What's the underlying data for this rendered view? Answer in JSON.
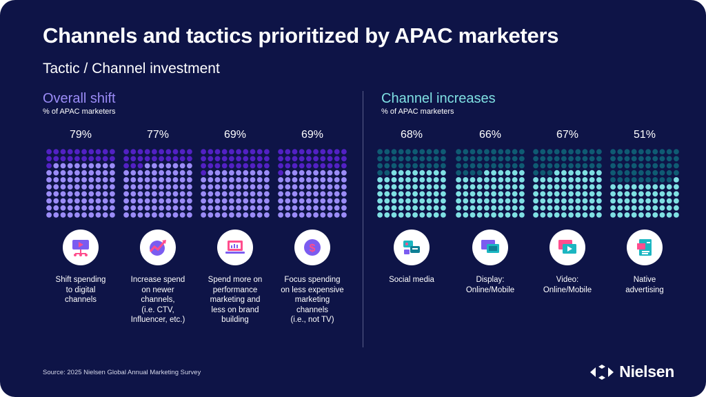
{
  "title": "Channels and tactics prioritized by APAC marketers",
  "subtitle": "Tactic / Channel investment",
  "sections": [
    {
      "title": "Overall shift",
      "subtitle": "% of APAC marketers",
      "color": "#9b8cf7"
    },
    {
      "title": "Channel increases",
      "subtitle": "% of APAC marketers",
      "color": "#7fe0e3"
    }
  ],
  "colors": {
    "background": "#0e1447",
    "purple_fill": "#9b8cf7",
    "purple_empty": "#5221c4",
    "teal_fill": "#7fe0e3",
    "teal_empty": "#0f5b73"
  },
  "chart_data": [
    {
      "type": "waffle",
      "title": "Overall shift",
      "subtitle": "% of APAC marketers",
      "categories": [
        "Shift spending\nto digital\nchannels",
        "Increase spend\non newer\nchannels,\n(i.e. CTV,\nInfluencer, etc.)",
        "Spend more on\nperformance\nmarketing and\nless on brand\nbuilding",
        "Focus spending\non less expensive\nmarketing\nchannels\n(i.e., not TV)"
      ],
      "values": [
        79,
        77,
        69,
        69
      ],
      "labels": [
        "79%",
        "77%",
        "69%",
        "69%"
      ],
      "icons": [
        "video-icon",
        "trend-icon",
        "laptop-icon",
        "dollar-icon"
      ]
    },
    {
      "type": "waffle",
      "title": "Channel increases",
      "subtitle": "% of APAC marketers",
      "categories": [
        "Social media",
        "Display:\nOnline/Mobile",
        "Video:\nOnline/Mobile",
        "Native\nadvertising"
      ],
      "values": [
        68,
        66,
        67,
        51
      ],
      "labels": [
        "68%",
        "66%",
        "67%",
        "51%"
      ],
      "icons": [
        "chat-icon",
        "devices-icon",
        "video-play-icon",
        "article-icon"
      ]
    }
  ],
  "source": "Source: 2025 Nielsen Global Annual Marketing Survey",
  "logo": "Nielsen"
}
